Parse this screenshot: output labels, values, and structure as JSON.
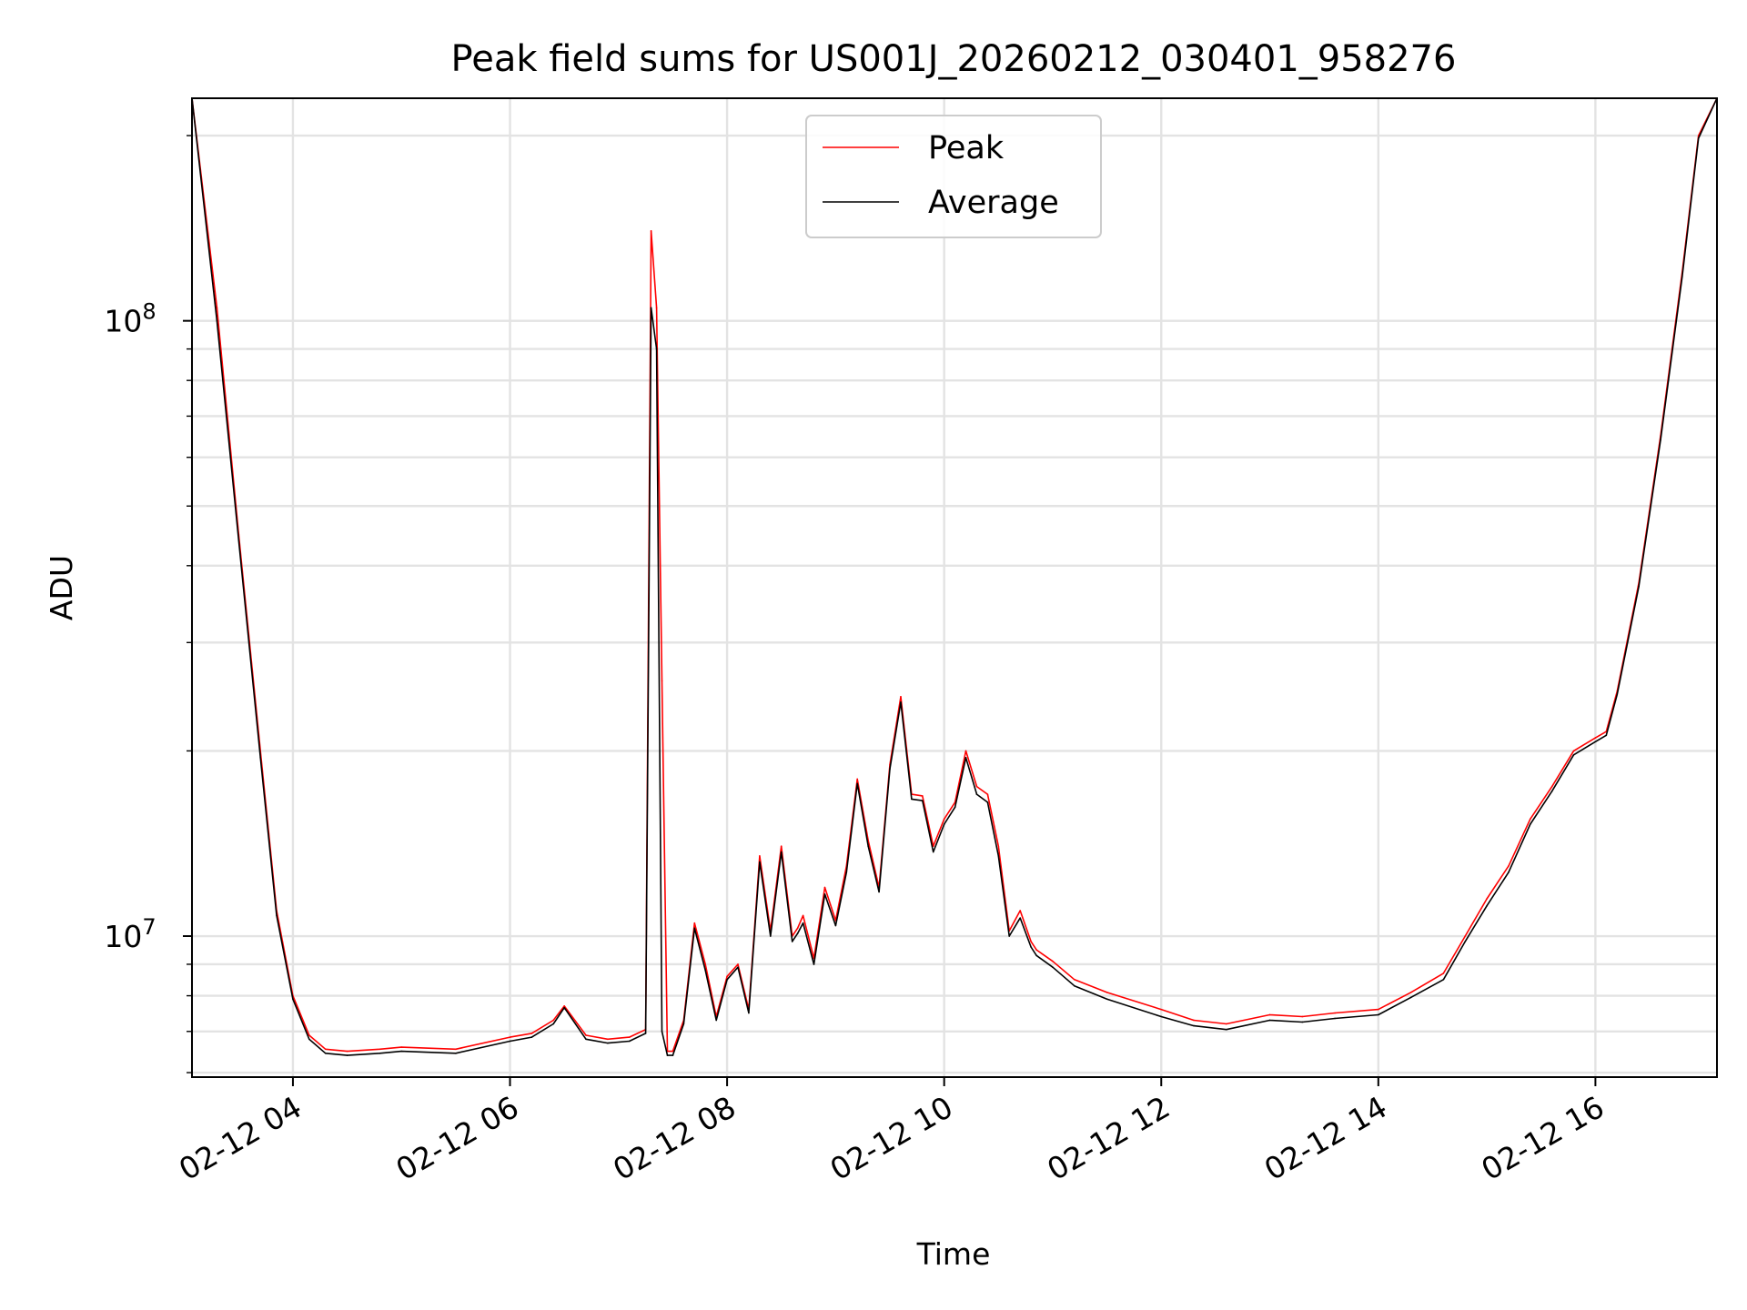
{
  "chart_data": {
    "type": "line",
    "title": "Peak field sums for US001J_20260212_030401_958276",
    "xlabel": "Time",
    "ylabel": "ADU",
    "yscale": "log",
    "xlim_hours": [
      3.07,
      17.12
    ],
    "ylim": [
      5900000,
      230000000
    ],
    "x_ticks": [
      {
        "hour": 4,
        "label": "02-12 04"
      },
      {
        "hour": 6,
        "label": "02-12 06"
      },
      {
        "hour": 8,
        "label": "02-12 08"
      },
      {
        "hour": 10,
        "label": "02-12 10"
      },
      {
        "hour": 12,
        "label": "02-12 12"
      },
      {
        "hour": 14,
        "label": "02-12 14"
      },
      {
        "hour": 16,
        "label": "02-12 16"
      }
    ],
    "y_ticks": [
      {
        "value": 10000000,
        "base": "10",
        "exp": "7"
      },
      {
        "value": 100000000,
        "base": "10",
        "exp": "8"
      }
    ],
    "grid": true,
    "legend_position": "upper center",
    "series": [
      {
        "name": "Peak",
        "color": "#ff0000",
        "x_hours": [
          3.07,
          3.3,
          3.5,
          3.7,
          3.85,
          4.0,
          4.15,
          4.3,
          4.5,
          4.8,
          5.0,
          5.5,
          6.0,
          6.2,
          6.4,
          6.5,
          6.7,
          6.9,
          7.1,
          7.25,
          7.3,
          7.35,
          7.4,
          7.45,
          7.5,
          7.6,
          7.7,
          7.8,
          7.9,
          8.0,
          8.1,
          8.2,
          8.3,
          8.4,
          8.5,
          8.6,
          8.65,
          8.7,
          8.8,
          8.9,
          9.0,
          9.1,
          9.2,
          9.3,
          9.4,
          9.5,
          9.6,
          9.7,
          9.8,
          9.9,
          10.0,
          10.1,
          10.2,
          10.3,
          10.4,
          10.5,
          10.6,
          10.7,
          10.8,
          10.85,
          11.0,
          11.2,
          11.5,
          12.0,
          12.3,
          12.6,
          13.0,
          13.3,
          13.6,
          14.0,
          14.3,
          14.6,
          14.8,
          15.0,
          15.2,
          15.4,
          15.6,
          15.8,
          16.0,
          16.1,
          16.2,
          16.4,
          16.6,
          16.8,
          16.95,
          17.12
        ],
        "values": [
          230000000,
          105000000,
          45000000,
          20000000,
          11000000,
          8000000,
          6900000,
          6550000,
          6500000,
          6550000,
          6600000,
          6550000,
          6850000,
          6950000,
          7300000,
          7700000,
          6900000,
          6800000,
          6850000,
          7050000,
          140000000,
          105000000,
          26000000,
          6500000,
          6500000,
          7300000,
          10500000,
          9000000,
          7400000,
          8600000,
          9000000,
          7600000,
          13500000,
          10200000,
          14000000,
          10000000,
          10300000,
          10800000,
          9200000,
          12000000,
          10600000,
          13000000,
          18000000,
          14300000,
          12000000,
          19000000,
          24500000,
          17000000,
          16900000,
          14000000,
          15500000,
          16500000,
          20000000,
          17500000,
          17000000,
          14000000,
          10200000,
          11000000,
          9800000,
          9500000,
          9100000,
          8500000,
          8100000,
          7600000,
          7300000,
          7200000,
          7450000,
          7400000,
          7500000,
          7600000,
          8100000,
          8700000,
          10000000,
          11500000,
          13000000,
          15500000,
          17500000,
          20000000,
          21000000,
          21500000,
          25000000,
          37500000,
          65000000,
          120000000,
          200000000,
          230000000
        ]
      },
      {
        "name": "Average",
        "color": "#000000",
        "x_hours": [
          3.07,
          3.3,
          3.5,
          3.7,
          3.85,
          4.0,
          4.15,
          4.3,
          4.5,
          4.8,
          5.0,
          5.5,
          6.0,
          6.2,
          6.4,
          6.5,
          6.7,
          6.9,
          7.1,
          7.25,
          7.3,
          7.35,
          7.4,
          7.45,
          7.5,
          7.6,
          7.7,
          7.8,
          7.9,
          8.0,
          8.1,
          8.2,
          8.3,
          8.4,
          8.5,
          8.6,
          8.65,
          8.7,
          8.8,
          8.9,
          9.0,
          9.1,
          9.2,
          9.3,
          9.4,
          9.5,
          9.6,
          9.7,
          9.8,
          9.9,
          10.0,
          10.1,
          10.2,
          10.3,
          10.4,
          10.5,
          10.6,
          10.7,
          10.8,
          10.85,
          11.0,
          11.2,
          11.5,
          12.0,
          12.3,
          12.6,
          13.0,
          13.3,
          13.6,
          14.0,
          14.3,
          14.6,
          14.8,
          15.0,
          15.2,
          15.4,
          15.6,
          15.8,
          16.0,
          16.1,
          16.2,
          16.4,
          16.6,
          16.8,
          16.95,
          17.12
        ],
        "values": [
          230000000,
          100000000,
          44000000,
          19500000,
          10800000,
          7900000,
          6800000,
          6450000,
          6400000,
          6450000,
          6500000,
          6450000,
          6750000,
          6850000,
          7200000,
          7650000,
          6800000,
          6700000,
          6750000,
          6950000,
          105000000,
          90000000,
          7000000,
          6400000,
          6400000,
          7200000,
          10300000,
          8800000,
          7300000,
          8500000,
          8900000,
          7500000,
          13200000,
          10000000,
          13700000,
          9800000,
          10100000,
          10500000,
          9000000,
          11700000,
          10400000,
          12700000,
          17700000,
          14000000,
          11800000,
          18700000,
          24000000,
          16700000,
          16600000,
          13700000,
          15200000,
          16200000,
          19500000,
          17000000,
          16500000,
          13500000,
          10000000,
          10700000,
          9600000,
          9300000,
          8900000,
          8300000,
          7900000,
          7400000,
          7150000,
          7050000,
          7300000,
          7250000,
          7350000,
          7450000,
          7950000,
          8500000,
          9800000,
          11200000,
          12700000,
          15200000,
          17200000,
          19700000,
          20700000,
          21200000,
          24700000,
          37000000,
          64000000,
          118000000,
          198000000,
          230000000
        ]
      }
    ]
  }
}
